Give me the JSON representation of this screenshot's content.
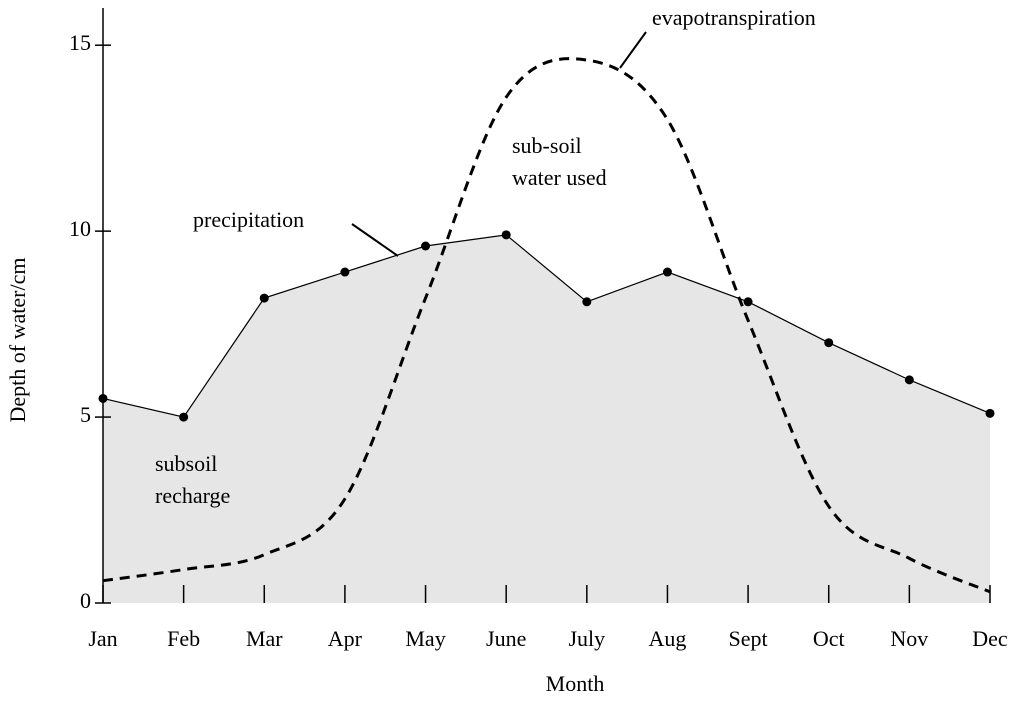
{
  "chart_data": {
    "type": "line",
    "xlabel": "Month",
    "ylabel": "Depth of water/cm",
    "categories": [
      "Jan",
      "Feb",
      "Mar",
      "Apr",
      "May",
      "June",
      "July",
      "Aug",
      "Sept",
      "Oct",
      "Nov",
      "Dec"
    ],
    "series": [
      {
        "name": "precipitation",
        "color": "#000000",
        "style": "solid",
        "markers": true,
        "fill": "#e6e6e6",
        "values": [
          5.5,
          5.0,
          8.2,
          8.9,
          9.6,
          9.9,
          8.1,
          8.9,
          8.1,
          7.0,
          6.0,
          5.1
        ]
      },
      {
        "name": "evapotranspiration",
        "color": "#000000",
        "style": "dashed",
        "markers": false,
        "values": [
          0.6,
          0.9,
          1.3,
          2.8,
          8.2,
          13.6,
          14.6,
          13.0,
          7.6,
          2.6,
          1.2,
          0.3
        ]
      }
    ],
    "ylim": [
      0,
      16
    ],
    "yticks": [
      0,
      5,
      10,
      15
    ],
    "annotations": [
      {
        "lines": [
          "evapotranspiration"
        ]
      },
      {
        "lines": [
          "sub-soil",
          "water used"
        ]
      },
      {
        "lines": [
          "precipitation"
        ]
      },
      {
        "lines": [
          "subsoil",
          "recharge"
        ]
      }
    ]
  }
}
